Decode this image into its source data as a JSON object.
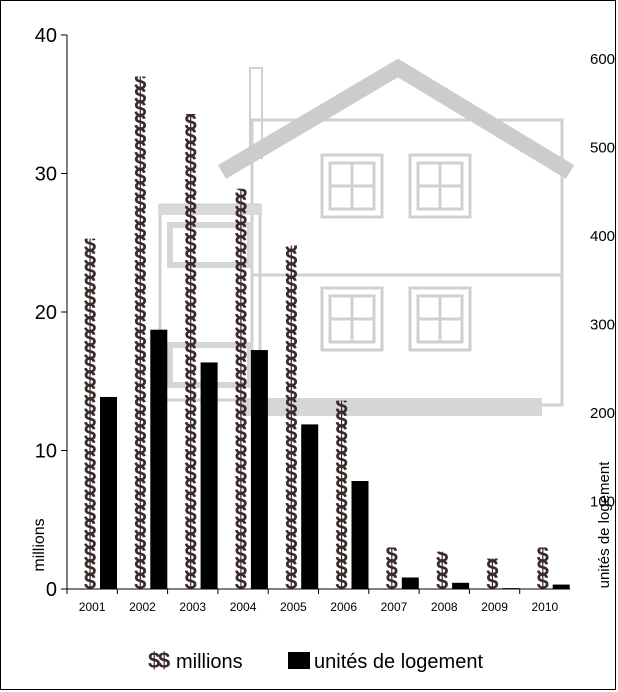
{
  "chart_data": {
    "type": "bar",
    "title": "",
    "categories": [
      "2001",
      "2002",
      "2003",
      "2004",
      "2005",
      "2006",
      "2007",
      "2008",
      "2009",
      "2010"
    ],
    "series": [
      {
        "name": "millions",
        "axis": "left",
        "values": [
          25.3,
          37.0,
          34.3,
          28.9,
          24.8,
          13.6,
          3.0,
          2.7,
          2.2,
          3.0
        ],
        "symbol": "$",
        "color": "#3a2a2a"
      },
      {
        "name": "unités de logement",
        "axis": "right",
        "values": [
          217,
          293,
          256,
          270,
          186,
          122,
          13,
          7,
          1,
          5
        ],
        "color": "#000000"
      }
    ],
    "left_axis": {
      "label": "millions",
      "min": 0,
      "max": 40,
      "ticks": [
        0,
        10,
        20,
        30,
        40
      ]
    },
    "right_axis": {
      "label": "unités de logement",
      "min": 0,
      "max": 600,
      "ticks": [
        100,
        200,
        300,
        400,
        500,
        600
      ]
    },
    "legend": {
      "placement": "bottom",
      "symbol": "$"
    },
    "grid": false,
    "background": "house-illustration"
  }
}
